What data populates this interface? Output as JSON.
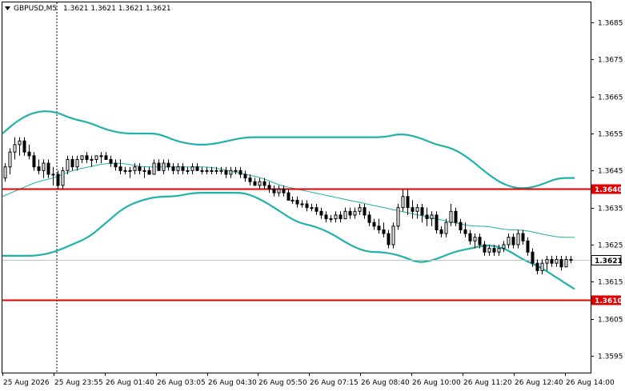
{
  "header": {
    "symbol_timeframe": "GBPUSD,M5",
    "ohlc": "1.3621 1.3621 1.3621 1.3621"
  },
  "colors": {
    "background": "#ffffff",
    "candle": "#000000",
    "bollinger_band": "#20b2aa",
    "level_line": "#e00000",
    "current_price_line": "#c0c0c0"
  },
  "chart_data": {
    "type": "candlestick",
    "title": "",
    "symbol": "GBPUSD",
    "timeframe": "M5",
    "ylim": [
      1.359,
      1.369
    ],
    "yticks": [
      "1.3685",
      "1.3675",
      "1.3665",
      "1.3655",
      "1.3645",
      "1.3635",
      "1.3625",
      "1.3615",
      "1.3605",
      "1.3595"
    ],
    "xticks": [
      "25 Aug 2026",
      "25 Aug 23:55",
      "26 Aug 01:40",
      "26 Aug 03:05",
      "26 Aug 04:30",
      "26 Aug 05:50",
      "26 Aug 07:15",
      "26 Aug 08:40",
      "26 Aug 10:00",
      "26 Aug 11:20",
      "26 Aug 12:40",
      "26 Aug 14:00"
    ],
    "horizontal_levels": [
      {
        "name": "resistance",
        "value": 1.364,
        "label": "1.3640"
      },
      {
        "name": "support",
        "value": 1.361,
        "label": "1.3610"
      }
    ],
    "current_price": {
      "value": 1.3621,
      "label": "1.3621"
    },
    "series": [
      {
        "name": "upper_band",
        "values": [
          1.3655,
          1.3659,
          1.3661,
          1.3661,
          1.3659,
          1.3658,
          1.3656,
          1.3655,
          1.3655,
          1.3655,
          1.3653,
          1.3652,
          1.3652,
          1.3653,
          1.3654,
          1.3654,
          1.3654,
          1.3654,
          1.3654,
          1.3654,
          1.3654,
          1.3654,
          1.3654,
          1.3655,
          1.3654,
          1.3652,
          1.3651,
          1.3648,
          1.3644,
          1.3641,
          1.364,
          1.3641,
          1.3643,
          1.3643
        ]
      },
      {
        "name": "middle_band",
        "values": [
          1.3638,
          1.364,
          1.3642,
          1.3643,
          1.3645,
          1.3646,
          1.3647,
          1.3647,
          1.3646,
          1.3646,
          1.3646,
          1.3646,
          1.3646,
          1.3645,
          1.3644,
          1.3643,
          1.3641,
          1.364,
          1.3639,
          1.3638,
          1.3637,
          1.3636,
          1.3635,
          1.3634,
          1.3633,
          1.3632,
          1.3631,
          1.363,
          1.363,
          1.3629,
          1.3629,
          1.3628,
          1.3627,
          1.3627
        ]
      },
      {
        "name": "lower_band",
        "values": [
          1.3622,
          1.3622,
          1.3622,
          1.3623,
          1.3625,
          1.3627,
          1.3631,
          1.3635,
          1.3637,
          1.3638,
          1.3638,
          1.3639,
          1.3639,
          1.3639,
          1.3639,
          1.3637,
          1.3634,
          1.3631,
          1.363,
          1.3628,
          1.3625,
          1.3623,
          1.3623,
          1.3622,
          1.362,
          1.3621,
          1.3623,
          1.3624,
          1.3625,
          1.3624,
          1.3621,
          1.3619,
          1.3616,
          1.3613
        ]
      }
    ],
    "candles": [
      [
        1.3643,
        1.3647,
        1.3642,
        1.3646
      ],
      [
        1.3646,
        1.3651,
        1.3644,
        1.365
      ],
      [
        1.365,
        1.3654,
        1.3648,
        1.3652
      ],
      [
        1.3652,
        1.3654,
        1.3649,
        1.3653
      ],
      [
        1.3653,
        1.3654,
        1.3649,
        1.365
      ],
      [
        1.365,
        1.3652,
        1.3648,
        1.3649
      ],
      [
        1.3649,
        1.365,
        1.3645,
        1.3646
      ],
      [
        1.3646,
        1.3648,
        1.3644,
        1.3645
      ],
      [
        1.3645,
        1.3648,
        1.3643,
        1.3647
      ],
      [
        1.3647,
        1.3648,
        1.3643,
        1.3644
      ],
      [
        1.3644,
        1.3646,
        1.3641,
        1.3644
      ],
      [
        1.3644,
        1.3645,
        1.364,
        1.3641
      ],
      [
        1.3641,
        1.3646,
        1.364,
        1.3645
      ],
      [
        1.3645,
        1.3649,
        1.3644,
        1.3648
      ],
      [
        1.3648,
        1.3649,
        1.3645,
        1.3646
      ],
      [
        1.3646,
        1.3649,
        1.3645,
        1.3648
      ],
      [
        1.3648,
        1.3649,
        1.3647,
        1.3649
      ],
      [
        1.3649,
        1.365,
        1.3647,
        1.3648
      ],
      [
        1.3648,
        1.3649,
        1.3646,
        1.3648
      ],
      [
        1.3648,
        1.3649,
        1.3647,
        1.3649
      ],
      [
        1.3649,
        1.365,
        1.3647,
        1.3649
      ],
      [
        1.3649,
        1.365,
        1.3648,
        1.3648
      ],
      [
        1.3648,
        1.3649,
        1.3646,
        1.3647
      ],
      [
        1.3647,
        1.3648,
        1.3645,
        1.3646
      ],
      [
        1.3646,
        1.3648,
        1.3644,
        1.3645
      ],
      [
        1.3645,
        1.3646,
        1.3644,
        1.3645
      ],
      [
        1.3645,
        1.3646,
        1.3643,
        1.3645
      ],
      [
        1.3645,
        1.3647,
        1.3644,
        1.3646
      ],
      [
        1.3646,
        1.3647,
        1.3644,
        1.3645
      ],
      [
        1.3645,
        1.3646,
        1.3643,
        1.3645
      ],
      [
        1.3645,
        1.3646,
        1.3644,
        1.3644
      ],
      [
        1.3644,
        1.3648,
        1.3644,
        1.3647
      ],
      [
        1.3647,
        1.3648,
        1.3645,
        1.3645
      ],
      [
        1.3645,
        1.3648,
        1.3644,
        1.3647
      ],
      [
        1.3647,
        1.3648,
        1.3645,
        1.3646
      ],
      [
        1.3646,
        1.3647,
        1.3644,
        1.3645
      ],
      [
        1.3645,
        1.3647,
        1.3644,
        1.3646
      ],
      [
        1.3646,
        1.3647,
        1.3644,
        1.3645
      ],
      [
        1.3645,
        1.3646,
        1.3644,
        1.3645
      ],
      [
        1.3645,
        1.3647,
        1.3644,
        1.3646
      ],
      [
        1.3646,
        1.3647,
        1.3645,
        1.3645
      ],
      [
        1.3645,
        1.3646,
        1.3644,
        1.3645
      ],
      [
        1.3645,
        1.3646,
        1.3644,
        1.3645
      ],
      [
        1.3645,
        1.3646,
        1.3644,
        1.3645
      ],
      [
        1.3645,
        1.3646,
        1.3644,
        1.3645
      ],
      [
        1.3645,
        1.3646,
        1.3644,
        1.3645
      ],
      [
        1.3645,
        1.3646,
        1.3643,
        1.3644
      ],
      [
        1.3644,
        1.3646,
        1.3643,
        1.3645
      ],
      [
        1.3645,
        1.3646,
        1.3644,
        1.3645
      ],
      [
        1.3645,
        1.3646,
        1.3643,
        1.3644
      ],
      [
        1.3644,
        1.3645,
        1.3642,
        1.3643
      ],
      [
        1.3643,
        1.3644,
        1.3641,
        1.3642
      ],
      [
        1.3642,
        1.3643,
        1.3641,
        1.3641
      ],
      [
        1.3641,
        1.3643,
        1.364,
        1.3642
      ],
      [
        1.3642,
        1.3643,
        1.364,
        1.3641
      ],
      [
        1.3641,
        1.3642,
        1.3639,
        1.364
      ],
      [
        1.364,
        1.3641,
        1.3638,
        1.3639
      ],
      [
        1.3639,
        1.3641,
        1.3638,
        1.364
      ],
      [
        1.364,
        1.3641,
        1.3638,
        1.3639
      ],
      [
        1.3639,
        1.364,
        1.3637,
        1.3637
      ],
      [
        1.3637,
        1.3638,
        1.3636,
        1.3637
      ],
      [
        1.3637,
        1.3638,
        1.3635,
        1.3636
      ],
      [
        1.3636,
        1.3637,
        1.3635,
        1.3636
      ],
      [
        1.3636,
        1.3637,
        1.3634,
        1.3635
      ],
      [
        1.3635,
        1.3636,
        1.3634,
        1.3635
      ],
      [
        1.3635,
        1.3636,
        1.3633,
        1.3634
      ],
      [
        1.3634,
        1.3635,
        1.3632,
        1.3633
      ],
      [
        1.3633,
        1.3634,
        1.3631,
        1.3632
      ],
      [
        1.3632,
        1.3633,
        1.3631,
        1.3632
      ],
      [
        1.3632,
        1.3634,
        1.3631,
        1.3633
      ],
      [
        1.3633,
        1.3634,
        1.3631,
        1.3632
      ],
      [
        1.3632,
        1.3635,
        1.3632,
        1.3634
      ],
      [
        1.3634,
        1.3635,
        1.3632,
        1.3633
      ],
      [
        1.3633,
        1.3635,
        1.3632,
        1.3634
      ],
      [
        1.3634,
        1.3636,
        1.3633,
        1.3635
      ],
      [
        1.3635,
        1.3636,
        1.3632,
        1.3633
      ],
      [
        1.3633,
        1.3634,
        1.363,
        1.3631
      ],
      [
        1.3631,
        1.3632,
        1.3629,
        1.363
      ],
      [
        1.363,
        1.3632,
        1.3628,
        1.3629
      ],
      [
        1.3629,
        1.3631,
        1.3627,
        1.3628
      ],
      [
        1.3628,
        1.3629,
        1.3624,
        1.3625
      ],
      [
        1.3625,
        1.3631,
        1.3624,
        1.363
      ],
      [
        1.363,
        1.3636,
        1.3629,
        1.3635
      ],
      [
        1.3635,
        1.364,
        1.3634,
        1.3638
      ],
      [
        1.3638,
        1.364,
        1.3633,
        1.3635
      ],
      [
        1.3635,
        1.3637,
        1.3632,
        1.3634
      ],
      [
        1.3634,
        1.3636,
        1.3632,
        1.3635
      ],
      [
        1.3635,
        1.3636,
        1.3631,
        1.3633
      ],
      [
        1.3633,
        1.3635,
        1.363,
        1.3632
      ],
      [
        1.3632,
        1.3634,
        1.363,
        1.3633
      ],
      [
        1.3633,
        1.3634,
        1.3628,
        1.3629
      ],
      [
        1.3629,
        1.363,
        1.3627,
        1.3628
      ],
      [
        1.3628,
        1.3632,
        1.3627,
        1.3631
      ],
      [
        1.3631,
        1.3636,
        1.363,
        1.3634
      ],
      [
        1.3634,
        1.3635,
        1.363,
        1.3631
      ],
      [
        1.3631,
        1.3632,
        1.3628,
        1.3629
      ],
      [
        1.3629,
        1.3631,
        1.3627,
        1.3628
      ],
      [
        1.3628,
        1.3629,
        1.3625,
        1.3626
      ],
      [
        1.3626,
        1.3628,
        1.3624,
        1.3627
      ],
      [
        1.3627,
        1.3628,
        1.3624,
        1.3625
      ],
      [
        1.3625,
        1.3626,
        1.3622,
        1.3623
      ],
      [
        1.3623,
        1.3625,
        1.3622,
        1.3624
      ],
      [
        1.3624,
        1.3625,
        1.3622,
        1.3623
      ],
      [
        1.3623,
        1.3625,
        1.3622,
        1.3624
      ],
      [
        1.3624,
        1.3626,
        1.3623,
        1.3625
      ],
      [
        1.3625,
        1.3628,
        1.3624,
        1.3627
      ],
      [
        1.3627,
        1.3628,
        1.3624,
        1.3625
      ],
      [
        1.3625,
        1.3629,
        1.3624,
        1.3628
      ],
      [
        1.3628,
        1.3629,
        1.3625,
        1.3626
      ],
      [
        1.3626,
        1.3627,
        1.3622,
        1.3623
      ],
      [
        1.3623,
        1.3624,
        1.3619,
        1.362
      ],
      [
        1.362,
        1.3621,
        1.3617,
        1.3618
      ],
      [
        1.3618,
        1.3621,
        1.3617,
        1.362
      ],
      [
        1.362,
        1.3622,
        1.3618,
        1.3621
      ],
      [
        1.3621,
        1.3622,
        1.3619,
        1.362
      ],
      [
        1.362,
        1.3622,
        1.3619,
        1.3621
      ],
      [
        1.3621,
        1.3622,
        1.3618,
        1.3619
      ],
      [
        1.3619,
        1.3622,
        1.3619,
        1.3621
      ],
      [
        1.3621,
        1.3622,
        1.362,
        1.3621
      ]
    ]
  }
}
